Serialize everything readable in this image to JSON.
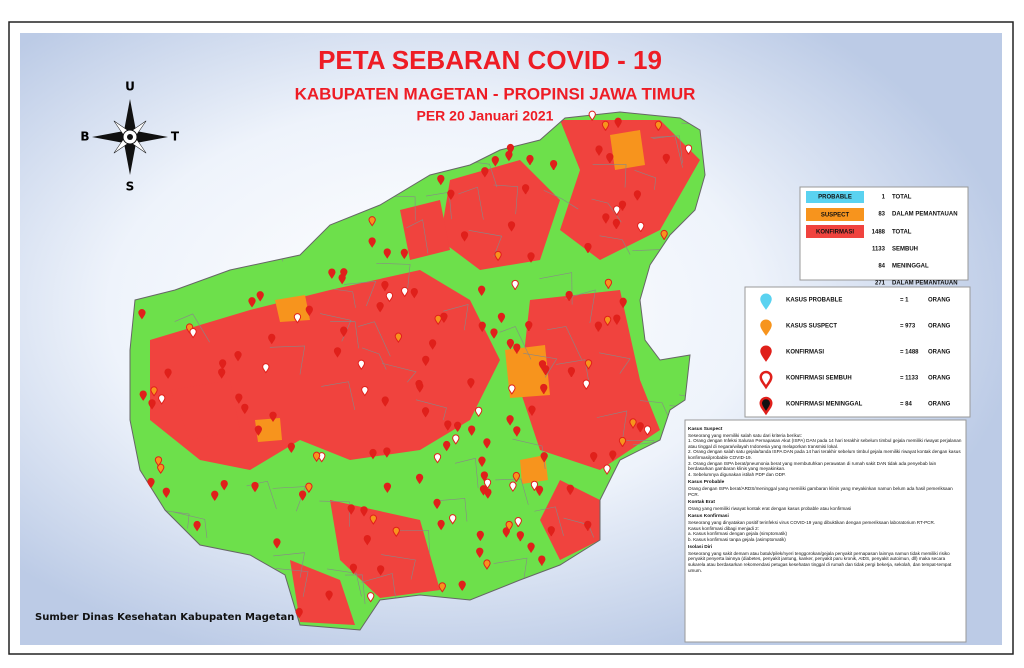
{
  "header": {
    "title": "PETA SEBARAN COVID - 19",
    "subtitle": "KABUPATEN MAGETAN  - PROPINSI JAWA TIMUR",
    "date": "PER 20 Januari 2021"
  },
  "compass": {
    "north": "U",
    "west": "B",
    "east": "T",
    "south": "S"
  },
  "summary": {
    "rows": [
      {
        "category": "PROBABLE",
        "value": "1",
        "label": "TOTAL"
      },
      {
        "category": "SUSPECT",
        "value": "83",
        "label": "DALAM PEMANTAUAN"
      },
      {
        "category": "KONFIRMASI",
        "value": "1488",
        "label": "TOTAL"
      },
      {
        "value": "1133",
        "label": "SEMBUH"
      },
      {
        "value": "84",
        "label": "MENINGGAL"
      },
      {
        "value": "271",
        "label": "DALAM PEMANTAUAN"
      }
    ]
  },
  "legend": {
    "items": [
      {
        "label": "KASUS PROBABLE",
        "value": "= 1",
        "unit": "ORANG"
      },
      {
        "label": "KASUS SUSPECT",
        "value": "= 973",
        "unit": "ORANG"
      },
      {
        "label": "KONFIRMASI",
        "value": "= 1488",
        "unit": "ORANG"
      },
      {
        "label": "KONFIRMASI SEMBUH",
        "value": "= 1133",
        "unit": "ORANG"
      },
      {
        "label": "KONFIRMASI MENINGGAL",
        "value": "= 84",
        "unit": "ORANG"
      }
    ]
  },
  "notes": {
    "sections": [
      {
        "heading": "Kasus Suspect",
        "lines": [
          "Seseorang yang memiliki salah satu dari kriteria berikut:",
          "1. Orang dengan Infeksi Saluran Pernapasan Akut (ISPA) DAN pada 14 hari terakhir sebelum timbul gejala memiliki riwayat perjalanan atau tinggal di negara/wilayah Indonesia yang melaporkan transmisi lokal.",
          "2. Orang dengan salah satu gejala/tanda ISPA DAN pada 14 hari terakhir sebelum timbul gejala memiliki riwayat kontak dengan kasus konfirmasi/probable COVID-19.",
          "3. Orang dengan ISPA berat/pneumonia berat yang membutuhkan perawatan di rumah sakit DAN tidak ada penyebab lain berdasarkan gambaran klinis yang meyakinkan.",
          "4. Sebelumnya digunakan istilah PDP dan ODP."
        ]
      },
      {
        "heading": "Kasus Probable",
        "lines": [
          "Orang dengan ISPA berat/ARDS/meninggal yang memiliki gambaran klinis yang meyakinkan namun belum ada hasil pemeriksaan PCR."
        ]
      },
      {
        "heading": "Kontak Erat",
        "lines": [
          "Orang yang memiliki riwayat kontak erat dengan kasus probable atau konfirmasi"
        ]
      },
      {
        "heading": "Kasus Konfirmasi",
        "lines": [
          "Seseorang yang dinyatakan positif terinfeksi virus COVID-19 yang dibuktikan dengan pemeriksaan laboratorium RT-PCR.",
          "Kasus konfirmasi dibagi menjadi 2:",
          "a. Kasus konfirmasi dengan gejala (simptomatik)",
          "b. Kasus konfirmasi tanpa gejala (asimptomatik)"
        ]
      },
      {
        "heading": "Isolasi Diri",
        "lines": [
          "Seseorang yang sakit demam atau batuk/pilek/nyeri tenggorokan/gejala penyakit pernapasan lainnya namun tidak memiliki risiko penyakit penyerta lainnya (diabetes, penyakit jantung, kanker, penyakit paru kronik, AIDS, penyakit autoimun, dll) maka secara sukarela atau berdasarkan rekomendasi petugas kesehatan tinggal di rumah dan tidak pergi bekerja, sekolah, dan tempat-tempat umum."
        ]
      }
    ]
  },
  "source": "Sumber Dinas Kesehatan Kabupaten Magetan"
}
